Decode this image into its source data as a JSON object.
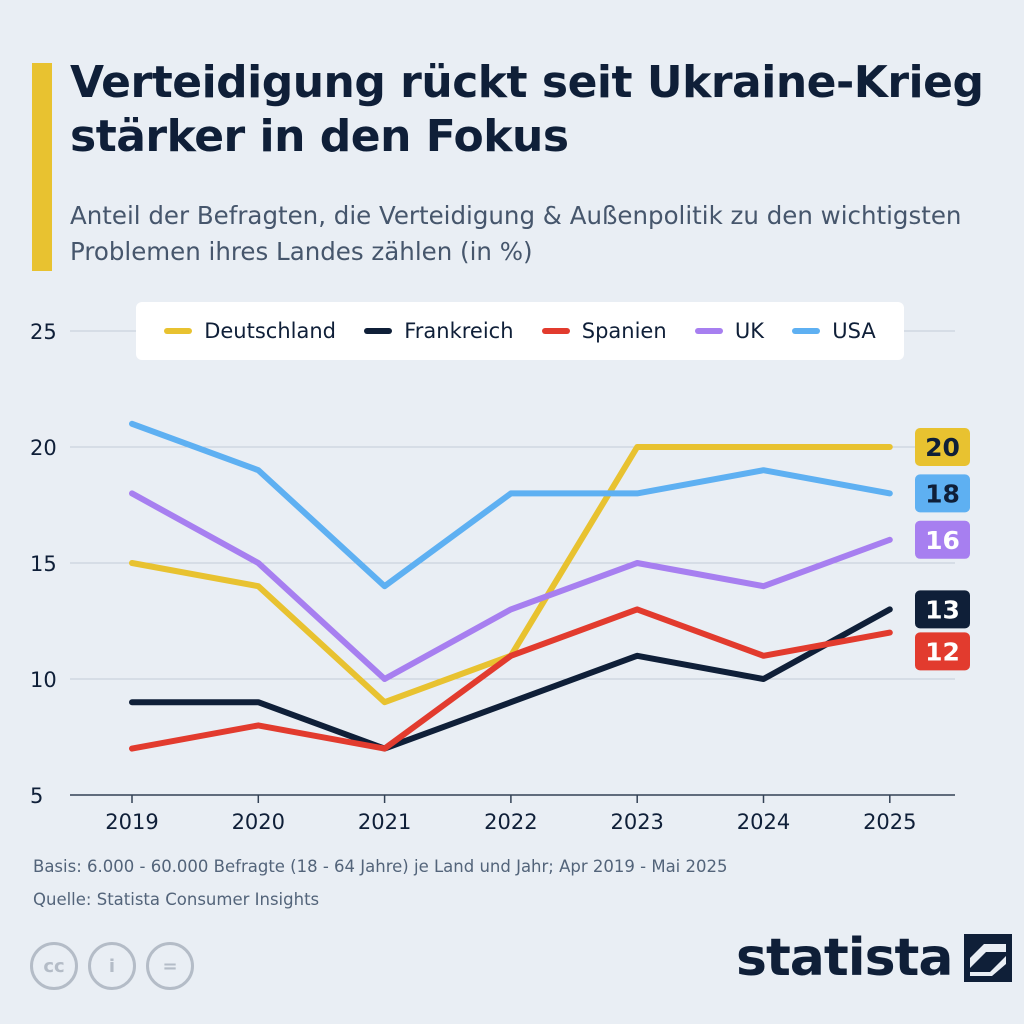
{
  "header": {
    "title": "Verteidigung rückt seit Ukraine-Krieg stärker in den Fokus",
    "subtitle": "Anteil der Befragten, die Verteidigung & Außenpolitik zu den wichtigsten Problemen ihres Landes zählen (in %)",
    "accent_color": "#e8c230"
  },
  "footer": {
    "basis": "Basis: 6.000 - 60.000 Befragte (18 - 64 Jahre) je Land und Jahr; Apr 2019 - Mai 2025",
    "quelle": "Quelle: Statista Consumer Insights",
    "brand": "statista",
    "license_icons": [
      "cc-icon",
      "attribution-icon",
      "no-derivatives-icon"
    ],
    "license_labels": [
      "cc",
      "i",
      "="
    ]
  },
  "chart_data": {
    "type": "line",
    "title": "Verteidigung rückt seit Ukraine-Krieg stärker in den Fokus",
    "subtitle": "Anteil der Befragten, die Verteidigung & Außenpolitik zu den wichtigsten Problemen ihres Landes zählen (in %)",
    "xlabel": "",
    "ylabel": "",
    "categories": [
      "2019",
      "2020",
      "2021",
      "2022",
      "2023",
      "2024",
      "2025"
    ],
    "ylim": [
      5,
      25
    ],
    "yticks": [
      "5",
      "10",
      "15",
      "20",
      "25"
    ],
    "grid": true,
    "legend": "top",
    "series": [
      {
        "name": "Deutschland",
        "color": "#e8c230",
        "values": [
          15,
          14,
          9,
          11,
          20,
          20,
          20
        ],
        "end_label": "20",
        "end_label_text_color": "#0f1f38"
      },
      {
        "name": "Frankreich",
        "color": "#0f1f38",
        "values": [
          9,
          9,
          7,
          9,
          11,
          10,
          13
        ],
        "end_label": "13",
        "end_label_text_color": "#ffffff"
      },
      {
        "name": "Spanien",
        "color": "#e23b2e",
        "values": [
          7,
          8,
          7,
          11,
          13,
          11,
          12
        ],
        "end_label": "12",
        "end_label_text_color": "#ffffff"
      },
      {
        "name": "UK",
        "color": "#a77ff0",
        "values": [
          18,
          15,
          10,
          13,
          15,
          14,
          16
        ],
        "end_label": "16",
        "end_label_text_color": "#ffffff"
      },
      {
        "name": "USA",
        "color": "#5eb0f2",
        "values": [
          21,
          19,
          14,
          18,
          18,
          19,
          18
        ],
        "end_label": "18",
        "end_label_text_color": "#0f1f38"
      }
    ]
  }
}
